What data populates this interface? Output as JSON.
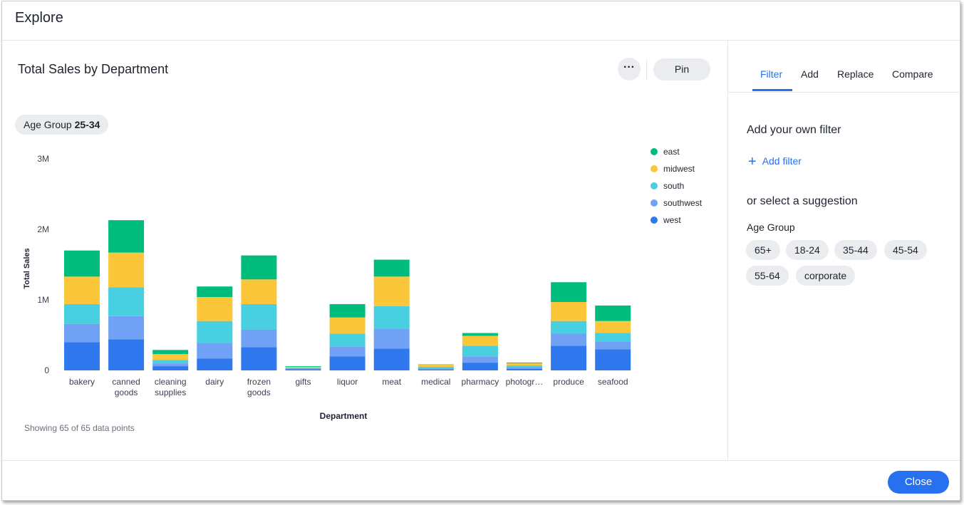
{
  "window": {
    "title": "Explore"
  },
  "chart_header": {
    "title": "Total Sales by Department",
    "more_icon": "more-horizontal-icon",
    "pin_label": "Pin"
  },
  "filter_chip": {
    "label": "Age Group",
    "value": "25-34"
  },
  "footnote": "Showing 65 of 65 data points",
  "right_panel": {
    "tabs": [
      {
        "label": "Filter",
        "active": true
      },
      {
        "label": "Add"
      },
      {
        "label": "Replace"
      },
      {
        "label": "Compare"
      }
    ],
    "own_filter_heading": "Add your own filter",
    "add_filter_label": "Add filter",
    "suggestion_heading": "or select a suggestion",
    "suggestion_group": "Age Group",
    "suggestions": [
      "65+",
      "18-24",
      "35-44",
      "45-54",
      "55-64",
      "corporate"
    ]
  },
  "footer": {
    "close_label": "Close"
  },
  "chart_data": {
    "type": "bar",
    "stacked": true,
    "title": "Total Sales by Department",
    "xlabel": "Department",
    "ylabel": "Total Sales",
    "ylim": [
      0,
      3000000
    ],
    "yticks": [
      {
        "value": 0,
        "label": "0"
      },
      {
        "value": 1000000,
        "label": "1M"
      },
      {
        "value": 2000000,
        "label": "2M"
      },
      {
        "value": 3000000,
        "label": "3M"
      }
    ],
    "grid": false,
    "legend": "right",
    "categories": [
      "bakery",
      "canned goods",
      "cleaning supplies",
      "dairy",
      "frozen goods",
      "gifts",
      "liquor",
      "meat",
      "medical",
      "pharmacy",
      "photogr…",
      "produce",
      "seafood"
    ],
    "series": [
      {
        "name": "west",
        "color": "#2f78ee",
        "values": [
          400000,
          440000,
          60000,
          170000,
          330000,
          15000,
          200000,
          310000,
          10000,
          110000,
          20000,
          350000,
          300000
        ]
      },
      {
        "name": "southwest",
        "color": "#71a1f4",
        "values": [
          260000,
          330000,
          40000,
          220000,
          250000,
          10000,
          140000,
          280000,
          20000,
          90000,
          20000,
          170000,
          110000
        ]
      },
      {
        "name": "south",
        "color": "#48d0e1",
        "values": [
          280000,
          410000,
          50000,
          310000,
          360000,
          12000,
          180000,
          320000,
          20000,
          150000,
          30000,
          180000,
          120000
        ]
      },
      {
        "name": "midwest",
        "color": "#fcc63a",
        "values": [
          390000,
          490000,
          80000,
          340000,
          350000,
          12000,
          230000,
          420000,
          30000,
          140000,
          30000,
          270000,
          170000
        ]
      },
      {
        "name": "east",
        "color": "#00bd7e",
        "values": [
          370000,
          460000,
          60000,
          150000,
          340000,
          10000,
          190000,
          240000,
          5000,
          40000,
          10000,
          280000,
          220000
        ]
      }
    ]
  }
}
